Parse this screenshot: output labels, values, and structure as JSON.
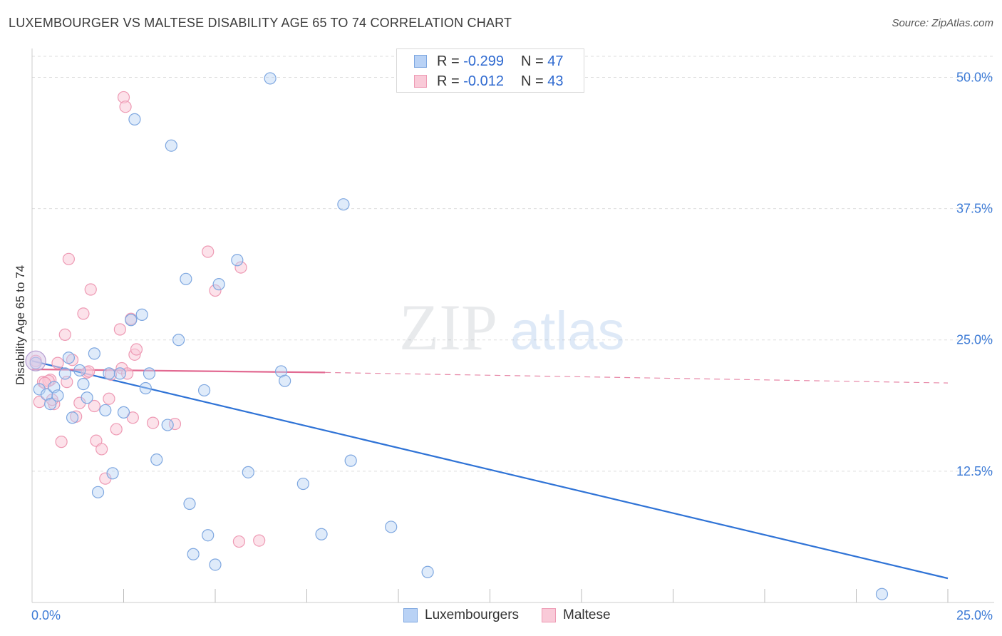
{
  "header": {
    "title": "LUXEMBOURGER VS MALTESE DISABILITY AGE 65 TO 74 CORRELATION CHART",
    "source": "Source: ZipAtlas.com"
  },
  "watermark": {
    "zip": "ZIP",
    "atlas": "atlas"
  },
  "legend": {
    "r_label": "R =",
    "n_label": "N =",
    "rows": [
      {
        "r": "-0.299",
        "n": "47",
        "fill": "#b9d2f5",
        "stroke": "#7ea7e0"
      },
      {
        "r": "-0.012",
        "n": "43",
        "fill": "#f9cad8",
        "stroke": "#ee9ab4"
      }
    ]
  },
  "bottom_legend": {
    "luxembourgers": "Luxembourgers",
    "maltese": "Maltese"
  },
  "chart_data": {
    "type": "scatter",
    "title": "LUXEMBOURGER VS MALTESE DISABILITY AGE 65 TO 74 CORRELATION CHART",
    "xlabel": "",
    "ylabel": "Disability Age 65 to 74",
    "xlim": [
      0,
      25
    ],
    "ylim": [
      0,
      52
    ],
    "x_tick_labels": {
      "left": "0.0%",
      "right": "25.0%"
    },
    "y_ticks": [
      {
        "value": 12.5,
        "label": "12.5%"
      },
      {
        "value": 25.0,
        "label": "25.0%"
      },
      {
        "value": 37.5,
        "label": "37.5%"
      },
      {
        "value": 50.0,
        "label": "50.0%"
      }
    ],
    "grid": "horizontal dashed",
    "legend_position": "top-center",
    "colors": {
      "blue": "#7ea7e0",
      "blue_line": "#2f73d6",
      "pink": "#ee9ab4",
      "pink_line": "#e26a92",
      "tick_label": "#3d7bd6"
    },
    "series": [
      {
        "name": "Luxembourgers",
        "color": "#7ea7e0",
        "r": -0.299,
        "n": 47,
        "trend": {
          "x0": 0,
          "y0": 23.0,
          "x1": 25,
          "y1": 2.3
        },
        "points": [
          [
            0.1,
            22.8
          ],
          [
            0.2,
            20.3
          ],
          [
            0.4,
            19.8
          ],
          [
            0.5,
            18.9
          ],
          [
            0.6,
            20.5
          ],
          [
            0.7,
            19.7
          ],
          [
            0.9,
            21.8
          ],
          [
            1.0,
            23.3
          ],
          [
            1.1,
            17.6
          ],
          [
            1.3,
            22.1
          ],
          [
            1.4,
            20.8
          ],
          [
            1.5,
            19.5
          ],
          [
            1.7,
            23.7
          ],
          [
            1.8,
            10.5
          ],
          [
            2.0,
            18.3
          ],
          [
            2.1,
            21.8
          ],
          [
            2.2,
            12.3
          ],
          [
            2.4,
            21.8
          ],
          [
            2.5,
            18.1
          ],
          [
            2.7,
            26.9
          ],
          [
            2.8,
            46.0
          ],
          [
            3.0,
            27.4
          ],
          [
            3.1,
            20.4
          ],
          [
            3.2,
            21.8
          ],
          [
            3.4,
            13.6
          ],
          [
            3.7,
            16.9
          ],
          [
            3.8,
            43.5
          ],
          [
            4.0,
            25.0
          ],
          [
            4.2,
            30.8
          ],
          [
            4.3,
            9.4
          ],
          [
            4.4,
            4.6
          ],
          [
            4.7,
            20.2
          ],
          [
            4.8,
            6.4
          ],
          [
            5.0,
            3.6
          ],
          [
            5.1,
            30.3
          ],
          [
            5.6,
            32.6
          ],
          [
            5.9,
            12.4
          ],
          [
            6.5,
            49.9
          ],
          [
            6.8,
            22.0
          ],
          [
            6.9,
            21.1
          ],
          [
            7.4,
            11.3
          ],
          [
            7.9,
            6.5
          ],
          [
            8.5,
            37.9
          ],
          [
            8.7,
            13.5
          ],
          [
            9.8,
            7.2
          ],
          [
            10.8,
            2.9
          ],
          [
            23.2,
            0.8
          ]
        ]
      },
      {
        "name": "Maltese",
        "color": "#ee9ab4",
        "r": -0.012,
        "n": 43,
        "trend_solid": {
          "x0": 0,
          "y0": 22.2,
          "x1": 8.0,
          "y1": 21.9
        },
        "trend_dashed": {
          "x0": 8.0,
          "y0": 21.9,
          "x1": 25,
          "y1": 20.9
        },
        "points": [
          [
            0.1,
            23.0
          ],
          [
            0.2,
            19.1
          ],
          [
            0.3,
            21.0
          ],
          [
            0.5,
            21.2
          ],
          [
            0.6,
            18.9
          ],
          [
            0.7,
            22.8
          ],
          [
            0.8,
            15.3
          ],
          [
            0.9,
            25.5
          ],
          [
            0.95,
            21.0
          ],
          [
            1.0,
            32.7
          ],
          [
            1.1,
            23.1
          ],
          [
            1.2,
            17.7
          ],
          [
            1.3,
            19.0
          ],
          [
            1.4,
            27.5
          ],
          [
            1.5,
            21.9
          ],
          [
            1.6,
            29.8
          ],
          [
            1.7,
            18.7
          ],
          [
            1.75,
            15.4
          ],
          [
            1.9,
            14.6
          ],
          [
            2.0,
            11.8
          ],
          [
            2.1,
            19.4
          ],
          [
            2.3,
            16.5
          ],
          [
            2.4,
            26.0
          ],
          [
            2.45,
            22.3
          ],
          [
            2.5,
            48.1
          ],
          [
            2.55,
            47.2
          ],
          [
            2.6,
            21.8
          ],
          [
            2.7,
            27.0
          ],
          [
            2.75,
            17.6
          ],
          [
            2.8,
            23.6
          ],
          [
            2.85,
            24.1
          ],
          [
            3.3,
            17.1
          ],
          [
            3.9,
            17.0
          ],
          [
            4.8,
            33.4
          ],
          [
            5.0,
            29.7
          ],
          [
            5.7,
            31.9
          ],
          [
            5.65,
            5.8
          ],
          [
            6.2,
            5.9
          ],
          [
            0.45,
            21.1
          ],
          [
            0.55,
            19.3
          ],
          [
            1.55,
            22.0
          ],
          [
            2.15,
            21.7
          ],
          [
            0.35,
            20.9
          ]
        ]
      }
    ]
  }
}
